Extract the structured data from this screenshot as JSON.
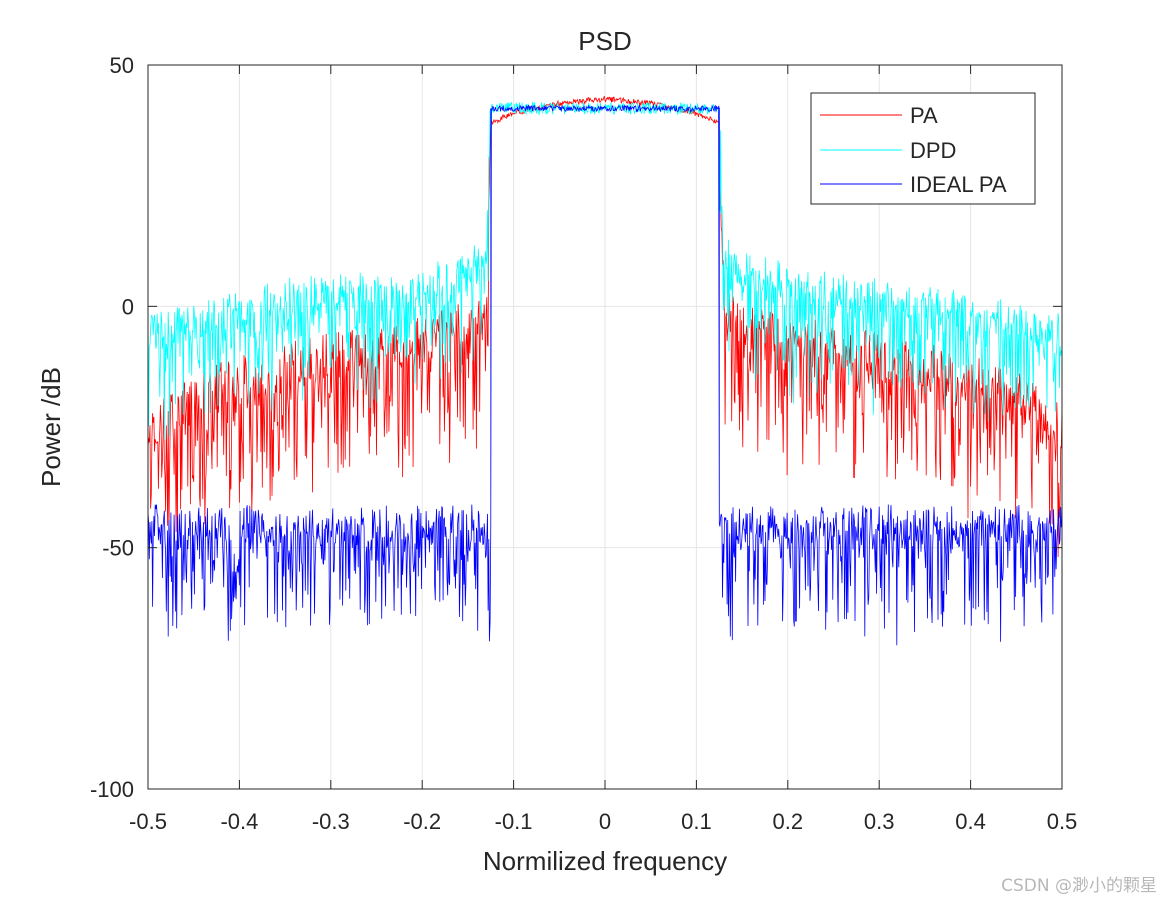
{
  "chart_data": {
    "type": "line",
    "title": "PSD",
    "xlabel": "Normilized frequency",
    "ylabel": "Power /dB",
    "xlim": [
      -0.5,
      0.5
    ],
    "ylim": [
      -100,
      50
    ],
    "grid": true,
    "legend_position": "top-right",
    "x_ticks": [
      -0.5,
      -0.4,
      -0.3,
      -0.2,
      -0.1,
      0,
      0.1,
      0.2,
      0.3,
      0.4,
      0.5
    ],
    "x_tick_labels": [
      "-0.5",
      "-0.4",
      "-0.3",
      "-0.2",
      "-0.1",
      "0",
      "0.1",
      "0.2",
      "0.3",
      "0.4",
      "0.5"
    ],
    "y_ticks": [
      -100,
      -50,
      0,
      50
    ],
    "y_tick_labels": [
      "-100",
      "-50",
      "0",
      "50"
    ],
    "band_edges": [
      -0.125,
      0.125
    ],
    "series": [
      {
        "name": "PA",
        "label": "PA",
        "color": "#ff0000",
        "x": [
          -0.5,
          -0.45,
          -0.4,
          -0.35,
          -0.3,
          -0.25,
          -0.2,
          -0.15,
          -0.13,
          -0.125,
          -0.1,
          -0.05,
          0,
          0.05,
          0.1,
          0.125,
          0.13,
          0.15,
          0.2,
          0.25,
          0.3,
          0.35,
          0.4,
          0.45,
          0.5
        ],
        "values": [
          -25,
          -18,
          -15,
          -12,
          -10,
          -8,
          -6,
          -3,
          0,
          38,
          40,
          42,
          43,
          42,
          40,
          38,
          0,
          -4,
          -6,
          -8,
          -10,
          -12,
          -15,
          -18,
          -25
        ],
        "noise_amplitude_db": 12
      },
      {
        "name": "DPD",
        "label": "DPD",
        "color": "#00ffff",
        "x": [
          -0.5,
          -0.45,
          -0.4,
          -0.35,
          -0.3,
          -0.25,
          -0.2,
          -0.15,
          -0.13,
          -0.125,
          -0.1,
          -0.05,
          0,
          0.05,
          0.1,
          0.125,
          0.13,
          0.15,
          0.2,
          0.25,
          0.3,
          0.35,
          0.4,
          0.45,
          0.5
        ],
        "values": [
          -5,
          -3,
          0,
          2,
          3,
          3,
          4,
          8,
          12,
          41,
          41,
          41,
          41,
          41,
          41,
          41,
          12,
          8,
          5,
          3,
          2,
          1,
          -1,
          -3,
          -5
        ],
        "noise_amplitude_db": 10
      },
      {
        "name": "IDEAL PA",
        "label": "IDEAL PA",
        "color": "#0000ff",
        "x": [
          -0.5,
          -0.125,
          -0.125,
          0.125,
          0.125,
          0.5
        ],
        "values": [
          -45,
          -45,
          41,
          41,
          -45,
          -45
        ],
        "noise_amplitude_db": 10
      }
    ]
  },
  "watermark": "CSDN @渺小的颗星"
}
